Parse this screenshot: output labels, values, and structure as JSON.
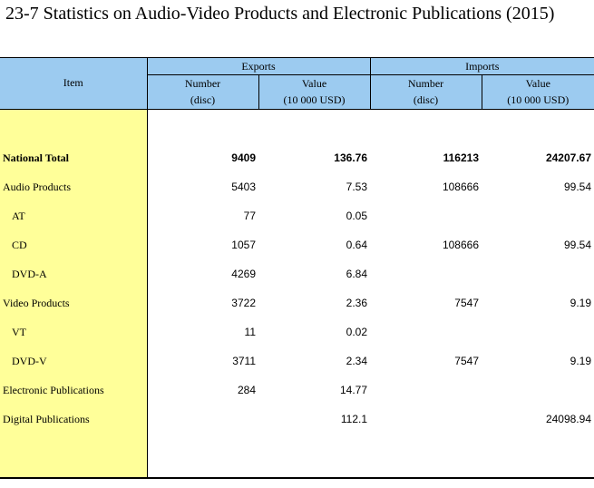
{
  "title": "23-7  Statistics on Audio-Video Products and Electronic Publications (2015)",
  "header": {
    "item": "Item",
    "exports": "Exports",
    "imports": "Imports",
    "number": "Number",
    "number_unit": "(disc)",
    "value": "Value",
    "value_unit": "(10 000 USD)"
  },
  "rows": [
    {
      "label": "National Total",
      "exp_num": "9409",
      "exp_val": "136.76",
      "imp_num": "116213",
      "imp_val": "24207.67"
    },
    {
      "label": "Audio Products",
      "exp_num": "5403",
      "exp_val": "7.53",
      "imp_num": "108666",
      "imp_val": "99.54"
    },
    {
      "label": "AT",
      "exp_num": "77",
      "exp_val": "0.05",
      "imp_num": "",
      "imp_val": ""
    },
    {
      "label": "CD",
      "exp_num": "1057",
      "exp_val": "0.64",
      "imp_num": "108666",
      "imp_val": "99.54"
    },
    {
      "label": "DVD-A",
      "exp_num": "4269",
      "exp_val": "6.84",
      "imp_num": "",
      "imp_val": ""
    },
    {
      "label": "Video Products",
      "exp_num": "3722",
      "exp_val": "2.36",
      "imp_num": "7547",
      "imp_val": "9.19"
    },
    {
      "label": "VT",
      "exp_num": "11",
      "exp_val": "0.02",
      "imp_num": "",
      "imp_val": ""
    },
    {
      "label": "DVD-V",
      "exp_num": "3711",
      "exp_val": "2.34",
      "imp_num": "7547",
      "imp_val": "9.19"
    },
    {
      "label": "Electronic Publications",
      "exp_num": "284",
      "exp_val": "14.77",
      "imp_num": "",
      "imp_val": ""
    },
    {
      "label": "Digital Publications",
      "exp_num": "",
      "exp_val": "112.1",
      "imp_num": "",
      "imp_val": "24098.94"
    }
  ]
}
